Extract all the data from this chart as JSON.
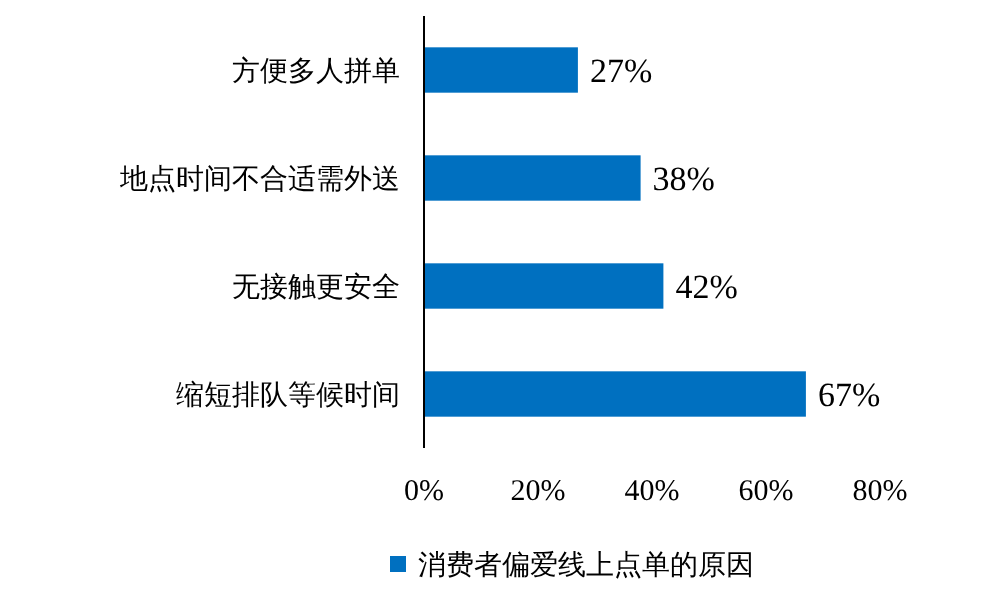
{
  "chart_data": {
    "type": "bar",
    "orientation": "horizontal",
    "categories": [
      "方便多人拼单",
      "地点时间不合适需外送",
      "无接触更安全",
      "缩短排队等候时间"
    ],
    "series": [
      {
        "name": "消费者偏爱线上点单的原因",
        "color": "#0070c0",
        "values": [
          27,
          38,
          42,
          67
        ],
        "value_labels": [
          "27%",
          "38%",
          "42%",
          "67%"
        ]
      }
    ],
    "xlim": [
      0,
      80
    ],
    "xticks": [
      {
        "value": 0,
        "label": "0%"
      },
      {
        "value": 20,
        "label": "20%"
      },
      {
        "value": 40,
        "label": "40%"
      },
      {
        "value": 60,
        "label": "60%"
      },
      {
        "value": 80,
        "label": "80%"
      }
    ],
    "grid": false,
    "legend": "bottom"
  }
}
